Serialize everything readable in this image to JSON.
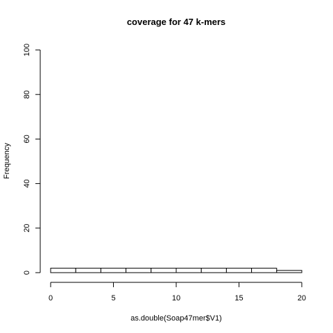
{
  "chart_data": {
    "type": "bar",
    "title": "coverage for 47 k-mers",
    "xlabel": "as.double(Soap47mer$V1)",
    "ylabel": "Frequency",
    "xlim": [
      0,
      20
    ],
    "ylim": [
      0,
      100
    ],
    "x_ticks": [
      0,
      5,
      10,
      15,
      20
    ],
    "y_ticks": [
      0,
      20,
      40,
      60,
      80,
      100
    ],
    "bins": [
      {
        "start": 0,
        "end": 2,
        "count": 2
      },
      {
        "start": 2,
        "end": 4,
        "count": 2
      },
      {
        "start": 4,
        "end": 6,
        "count": 2
      },
      {
        "start": 6,
        "end": 8,
        "count": 2
      },
      {
        "start": 8,
        "end": 10,
        "count": 2
      },
      {
        "start": 10,
        "end": 12,
        "count": 2
      },
      {
        "start": 12,
        "end": 14,
        "count": 2
      },
      {
        "start": 14,
        "end": 16,
        "count": 2
      },
      {
        "start": 16,
        "end": 18,
        "count": 2
      },
      {
        "start": 18,
        "end": 20,
        "count": 1
      }
    ]
  }
}
